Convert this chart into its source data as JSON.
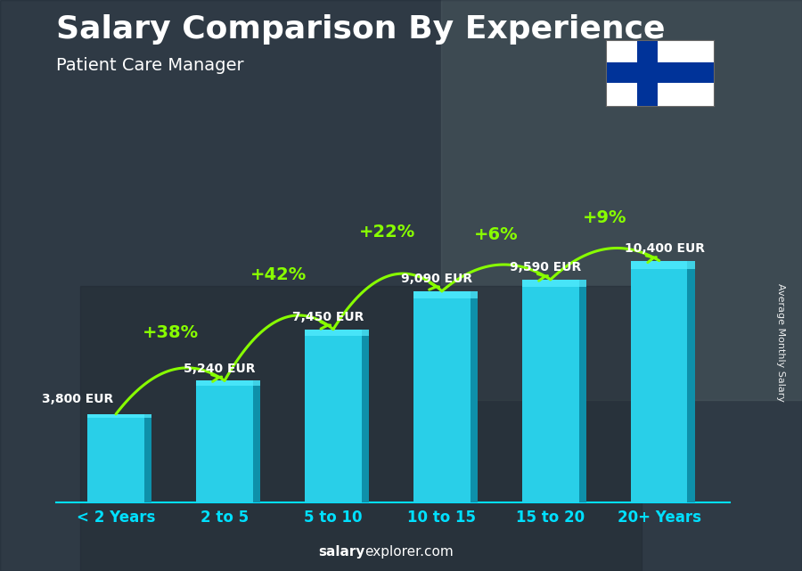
{
  "title": "Salary Comparison By Experience",
  "subtitle": "Patient Care Manager",
  "categories": [
    "< 2 Years",
    "2 to 5",
    "5 to 10",
    "10 to 15",
    "15 to 20",
    "20+ Years"
  ],
  "values": [
    3800,
    5240,
    7450,
    9090,
    9590,
    10400
  ],
  "value_labels": [
    "3,800 EUR",
    "5,240 EUR",
    "7,450 EUR",
    "9,090 EUR",
    "9,590 EUR",
    "10,400 EUR"
  ],
  "pct_changes": [
    "+38%",
    "+42%",
    "+22%",
    "+6%",
    "+9%"
  ],
  "bar_face_color": "#29cfe8",
  "bar_right_color": "#0e90aa",
  "bar_top_color": "#55eeff",
  "bg_color": "#2a3a4a",
  "text_white": "#ffffff",
  "text_cyan": "#00e0ff",
  "text_green": "#88ff00",
  "ylabel": "Average Monthly Salary",
  "footer_bold": "salary",
  "footer_rest": "explorer.com",
  "ylim_max": 14000,
  "bar_width": 0.52,
  "title_fontsize": 26,
  "subtitle_fontsize": 14,
  "value_fontsize": 10,
  "pct_fontsize": 14,
  "xtick_fontsize": 12,
  "flag_blue": "#003399"
}
